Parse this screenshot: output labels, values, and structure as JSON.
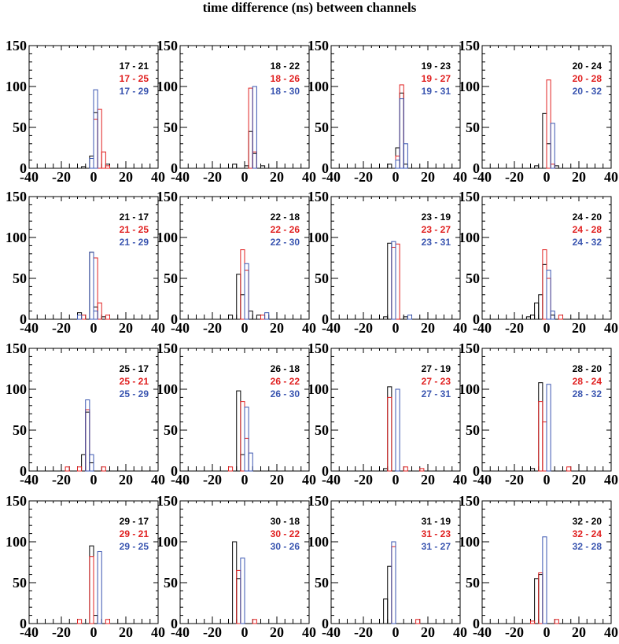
{
  "title": "time difference (ns) between channels",
  "colors": {
    "black": "#000000",
    "red": "#e02020",
    "blue": "#3a55b0"
  },
  "chart_data": {
    "type": "bar",
    "layout": "4x4 grid of overlaid histograms",
    "xlim": [
      -40,
      40
    ],
    "ylim": [
      0,
      150
    ],
    "xticks": [
      "-40",
      "-20",
      "0",
      "20",
      "40"
    ],
    "yticks": [
      "0",
      "50",
      "100",
      "150"
    ],
    "bin_width": 2.5,
    "panels": [
      {
        "legend": [
          "17 - 21",
          "17 - 25",
          "17 - 29"
        ],
        "series": [
          {
            "color": "black",
            "bins": [
              [
                -7.5,
                2
              ],
              [
                -2.5,
                15
              ],
              [
                0,
                68
              ],
              [
                7.5,
                5
              ]
            ]
          },
          {
            "color": "red",
            "bins": [
              [
                0,
                60
              ],
              [
                2.5,
                72
              ],
              [
                5,
                20
              ],
              [
                7.5,
                3
              ]
            ]
          },
          {
            "color": "blue",
            "bins": [
              [
                -2.5,
                12
              ],
              [
                0,
                96
              ]
            ]
          }
        ]
      },
      {
        "legend": [
          "18 - 22",
          "18 - 26",
          "18 - 30"
        ],
        "series": [
          {
            "color": "black",
            "bins": [
              [
                -7.5,
                5
              ],
              [
                0,
                3
              ],
              [
                2.5,
                45
              ],
              [
                5,
                18
              ],
              [
                10,
                3
              ]
            ]
          },
          {
            "color": "red",
            "bins": [
              [
                2.5,
                98
              ],
              [
                5,
                20
              ]
            ]
          },
          {
            "color": "blue",
            "bins": [
              [
                5,
                100
              ]
            ]
          }
        ]
      },
      {
        "legend": [
          "19 - 23",
          "19 - 27",
          "19 - 31"
        ],
        "series": [
          {
            "color": "black",
            "bins": [
              [
                -5,
                5
              ],
              [
                0,
                25
              ],
              [
                2.5,
                92
              ],
              [
                5,
                5
              ]
            ]
          },
          {
            "color": "red",
            "bins": [
              [
                0,
                15
              ],
              [
                2.5,
                102
              ]
            ]
          },
          {
            "color": "blue",
            "bins": [
              [
                0,
                10
              ],
              [
                2.5,
                85
              ],
              [
                5,
                30
              ]
            ]
          }
        ]
      },
      {
        "legend": [
          "20 - 24",
          "20 - 28",
          "20 - 32"
        ],
        "series": [
          {
            "color": "black",
            "bins": [
              [
                -7.5,
                3
              ],
              [
                -2.5,
                67
              ],
              [
                0,
                30
              ],
              [
                5,
                3
              ]
            ]
          },
          {
            "color": "red",
            "bins": [
              [
                0,
                108
              ],
              [
                2.5,
                5
              ]
            ]
          },
          {
            "color": "blue",
            "bins": [
              [
                2.5,
                55
              ]
            ]
          }
        ]
      },
      {
        "legend": [
          "21 - 17",
          "21 - 25",
          "21 - 29"
        ],
        "series": [
          {
            "color": "black",
            "bins": [
              [
                -10,
                8
              ],
              [
                -2.5,
                82
              ],
              [
                0,
                15
              ],
              [
                5,
                3
              ]
            ]
          },
          {
            "color": "red",
            "bins": [
              [
                -7.5,
                5
              ],
              [
                0,
                75
              ],
              [
                2.5,
                20
              ],
              [
                7.5,
                5
              ]
            ]
          },
          {
            "color": "blue",
            "bins": [
              [
                -10,
                5
              ],
              [
                -2.5,
                82
              ],
              [
                0,
                10
              ]
            ]
          }
        ]
      },
      {
        "legend": [
          "22 - 18",
          "22 - 26",
          "22 - 30"
        ],
        "series": [
          {
            "color": "black",
            "bins": [
              [
                -10,
                5
              ],
              [
                -5,
                55
              ],
              [
                -2.5,
                30
              ],
              [
                2.5,
                10
              ],
              [
                7.5,
                5
              ]
            ]
          },
          {
            "color": "red",
            "bins": [
              [
                -2.5,
                85
              ],
              [
                0,
                60
              ],
              [
                10,
                5
              ]
            ]
          },
          {
            "color": "blue",
            "bins": [
              [
                0,
                68
              ],
              [
                12.5,
                8
              ]
            ]
          }
        ]
      },
      {
        "legend": [
          "23 - 19",
          "23 - 27",
          "23 - 31"
        ],
        "series": [
          {
            "color": "black",
            "bins": [
              [
                -7.5,
                3
              ],
              [
                -5,
                93
              ],
              [
                5,
                3
              ]
            ]
          },
          {
            "color": "red",
            "bins": [
              [
                -2.5,
                88
              ],
              [
                0,
                92
              ]
            ]
          },
          {
            "color": "blue",
            "bins": [
              [
                -2.5,
                95
              ],
              [
                7.5,
                5
              ]
            ]
          }
        ]
      },
      {
        "legend": [
          "24 - 20",
          "24 - 28",
          "24 - 32"
        ],
        "series": [
          {
            "color": "black",
            "bins": [
              [
                -12.5,
                3
              ],
              [
                -10,
                5
              ],
              [
                -7.5,
                20
              ],
              [
                -5,
                30
              ],
              [
                -2.5,
                67
              ],
              [
                2.5,
                5
              ]
            ]
          },
          {
            "color": "red",
            "bins": [
              [
                -2.5,
                85
              ],
              [
                0,
                50
              ],
              [
                7.5,
                5
              ]
            ]
          },
          {
            "color": "blue",
            "bins": [
              [
                0,
                60
              ],
              [
                2.5,
                10
              ]
            ]
          }
        ]
      },
      {
        "legend": [
          "25 - 17",
          "25 - 21",
          "25 - 29"
        ],
        "series": [
          {
            "color": "black",
            "bins": [
              [
                -7.5,
                20
              ],
              [
                -5,
                72
              ],
              [
                -2.5,
                10
              ]
            ]
          },
          {
            "color": "red",
            "bins": [
              [
                -17.5,
                5
              ],
              [
                -10,
                5
              ],
              [
                -5,
                75
              ],
              [
                5,
                5
              ]
            ]
          },
          {
            "color": "blue",
            "bins": [
              [
                -5,
                87
              ],
              [
                -2.5,
                20
              ]
            ]
          }
        ]
      },
      {
        "legend": [
          "26 - 18",
          "26 - 22",
          "26 - 30"
        ],
        "series": [
          {
            "color": "black",
            "bins": [
              [
                -5,
                98
              ],
              [
                -2.5,
                20
              ]
            ]
          },
          {
            "color": "red",
            "bins": [
              [
                -10,
                5
              ],
              [
                -2.5,
                85
              ],
              [
                0,
                40
              ]
            ]
          },
          {
            "color": "blue",
            "bins": [
              [
                0,
                78
              ],
              [
                2.5,
                22
              ]
            ]
          }
        ]
      },
      {
        "legend": [
          "27 - 19",
          "27 - 23",
          "27 - 31"
        ],
        "series": [
          {
            "color": "black",
            "bins": [
              [
                -7.5,
                3
              ],
              [
                -5,
                103
              ]
            ]
          },
          {
            "color": "red",
            "bins": [
              [
                -5,
                90
              ],
              [
                5,
                5
              ],
              [
                15,
                3
              ]
            ]
          },
          {
            "color": "blue",
            "bins": [
              [
                0,
                100
              ]
            ]
          }
        ]
      },
      {
        "legend": [
          "28 - 20",
          "28 - 24",
          "28 - 32"
        ],
        "series": [
          {
            "color": "black",
            "bins": [
              [
                -10,
                3
              ],
              [
                -5,
                108
              ]
            ]
          },
          {
            "color": "red",
            "bins": [
              [
                -5,
                85
              ],
              [
                -2.5,
                60
              ],
              [
                12.5,
                5
              ]
            ]
          },
          {
            "color": "blue",
            "bins": [
              [
                0,
                106
              ]
            ]
          }
        ]
      },
      {
        "legend": [
          "29 - 17",
          "29 - 21",
          "29 - 25"
        ],
        "series": [
          {
            "color": "black",
            "bins": [
              [
                -2.5,
                95
              ],
              [
                0,
                10
              ]
            ]
          },
          {
            "color": "red",
            "bins": [
              [
                -10,
                5
              ],
              [
                -2.5,
                82
              ],
              [
                7.5,
                5
              ]
            ]
          },
          {
            "color": "blue",
            "bins": [
              [
                2.5,
                88
              ]
            ]
          }
        ]
      },
      {
        "legend": [
          "30 - 18",
          "30 - 22",
          "30 - 26"
        ],
        "series": [
          {
            "color": "black",
            "bins": [
              [
                -7.5,
                100
              ],
              [
                -5,
                55
              ]
            ]
          },
          {
            "color": "red",
            "bins": [
              [
                -5,
                65
              ],
              [
                5,
                5
              ]
            ]
          },
          {
            "color": "blue",
            "bins": [
              [
                -2.5,
                80
              ]
            ]
          }
        ]
      },
      {
        "legend": [
          "31 - 19",
          "31 - 23",
          "31 - 27"
        ],
        "series": [
          {
            "color": "black",
            "bins": [
              [
                -7.5,
                30
              ],
              [
                -5,
                70
              ]
            ]
          },
          {
            "color": "red",
            "bins": [
              [
                -2.5,
                94
              ],
              [
                12.5,
                5
              ]
            ]
          },
          {
            "color": "blue",
            "bins": [
              [
                -2.5,
                100
              ]
            ]
          }
        ]
      },
      {
        "legend": [
          "32 - 20",
          "32 - 24",
          "32 - 28"
        ],
        "series": [
          {
            "color": "black",
            "bins": [
              [
                -7.5,
                55
              ],
              [
                -5,
                60
              ]
            ]
          },
          {
            "color": "red",
            "bins": [
              [
                -10,
                3
              ],
              [
                -5,
                62
              ],
              [
                5,
                5
              ]
            ]
          },
          {
            "color": "blue",
            "bins": [
              [
                -2.5,
                106
              ]
            ]
          }
        ]
      }
    ]
  }
}
